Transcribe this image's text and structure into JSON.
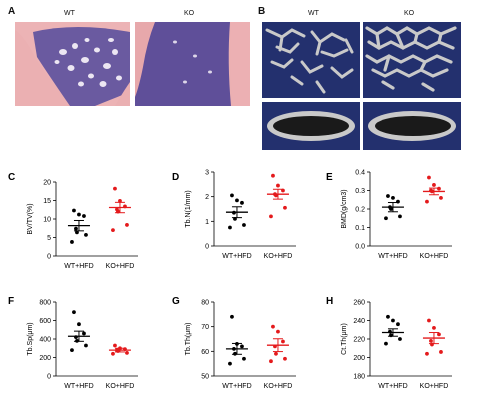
{
  "figure": {
    "panels": {
      "A": {
        "letter": "A",
        "wt_label": "WT",
        "ko_label": "KO"
      },
      "B": {
        "letter": "B",
        "wt_label": "WT",
        "ko_label": "KO"
      }
    },
    "colors": {
      "wt": "#000000",
      "ko": "#e41a1c",
      "mct_bg": "#23306e",
      "he_pink": "#e9a6a8",
      "he_purple": "#5b4b95",
      "bone_gray": "#c9c9c9"
    }
  },
  "chart_data": [
    {
      "panel": "C",
      "type": "scatter",
      "categories": [
        "WT+HFD",
        "KO+HFD"
      ],
      "ylabel": "BV/TV(%)",
      "ylim": [
        0,
        20
      ],
      "yticks": [
        0,
        5,
        10,
        15,
        20
      ],
      "series": [
        {
          "color": "#000000",
          "mean": 8.2,
          "sem": 1.4,
          "points": [
            12.3,
            11.2,
            10.8,
            7.4,
            6.4,
            5.7,
            3.8
          ]
        },
        {
          "color": "#e41a1c",
          "mean": 13.1,
          "sem": 1.4,
          "points": [
            18.2,
            14.9,
            13.4,
            12.6,
            12.0,
            8.4,
            7.0
          ]
        }
      ]
    },
    {
      "panel": "D",
      "type": "scatter",
      "categories": [
        "WT+HFD",
        "KO+HFD"
      ],
      "ylabel": "Tb.N(1/mm)",
      "ylim": [
        0,
        3
      ],
      "yticks": [
        0,
        1,
        2,
        3
      ],
      "series": [
        {
          "color": "#000000",
          "mean": 1.37,
          "sem": 0.22,
          "points": [
            2.05,
            1.85,
            1.75,
            1.35,
            1.1,
            0.85,
            0.75
          ]
        },
        {
          "color": "#e41a1c",
          "mean": 2.1,
          "sem": 0.2,
          "points": [
            2.85,
            2.45,
            2.25,
            2.1,
            2.05,
            1.55,
            1.2
          ]
        }
      ]
    },
    {
      "panel": "E",
      "type": "scatter",
      "categories": [
        "WT+HFD",
        "KO+HFD"
      ],
      "ylabel": "BMD(g/cm3)",
      "ylim": [
        0.0,
        0.4
      ],
      "yticks": [
        0.0,
        0.1,
        0.2,
        0.3,
        0.4
      ],
      "yticklabels": [
        "0.0",
        "0.1",
        "0.2",
        "0.3",
        "0.4"
      ],
      "series": [
        {
          "color": "#000000",
          "mean": 0.21,
          "sem": 0.025,
          "points": [
            0.27,
            0.26,
            0.24,
            0.21,
            0.2,
            0.16,
            0.15
          ]
        },
        {
          "color": "#e41a1c",
          "mean": 0.295,
          "sem": 0.018,
          "points": [
            0.37,
            0.33,
            0.31,
            0.3,
            0.295,
            0.26,
            0.24
          ]
        }
      ]
    },
    {
      "panel": "F",
      "type": "scatter",
      "categories": [
        "WT+HFD",
        "KO+HFD"
      ],
      "ylabel": "Tb.Sp(μm)",
      "ylim": [
        0,
        800
      ],
      "yticks": [
        0,
        200,
        400,
        600,
        800
      ],
      "series": [
        {
          "color": "#000000",
          "mean": 430,
          "sem": 55,
          "points": [
            690,
            560,
            460,
            420,
            380,
            330,
            280
          ]
        },
        {
          "color": "#e41a1c",
          "mean": 280,
          "sem": 20,
          "points": [
            330,
            300,
            290,
            280,
            270,
            250,
            240
          ]
        }
      ]
    },
    {
      "panel": "G",
      "type": "scatter",
      "categories": [
        "WT+HFD",
        "KO+HFD"
      ],
      "ylabel": "Tb.Th(μm)",
      "ylim": [
        50,
        80
      ],
      "yticks": [
        50,
        60,
        70,
        80
      ],
      "series": [
        {
          "color": "#000000",
          "mean": 61,
          "sem": 2.2,
          "points": [
            74,
            63,
            62,
            61,
            59,
            57,
            55
          ]
        },
        {
          "color": "#e41a1c",
          "mean": 62.5,
          "sem": 2.6,
          "points": [
            70,
            68,
            64,
            62,
            59,
            57,
            56
          ]
        }
      ]
    },
    {
      "panel": "H",
      "type": "scatter",
      "categories": [
        "WT+HFD",
        "KO+HFD"
      ],
      "ylabel": "Ct.Th(μm)",
      "ylim": [
        180,
        260
      ],
      "yticks": [
        180,
        200,
        220,
        240,
        260
      ],
      "series": [
        {
          "color": "#000000",
          "mean": 227,
          "sem": 4,
          "points": [
            244,
            240,
            236,
            228,
            224,
            220,
            215
          ]
        },
        {
          "color": "#e41a1c",
          "mean": 221,
          "sem": 6,
          "points": [
            240,
            232,
            225,
            218,
            214,
            206,
            204
          ]
        }
      ]
    }
  ]
}
